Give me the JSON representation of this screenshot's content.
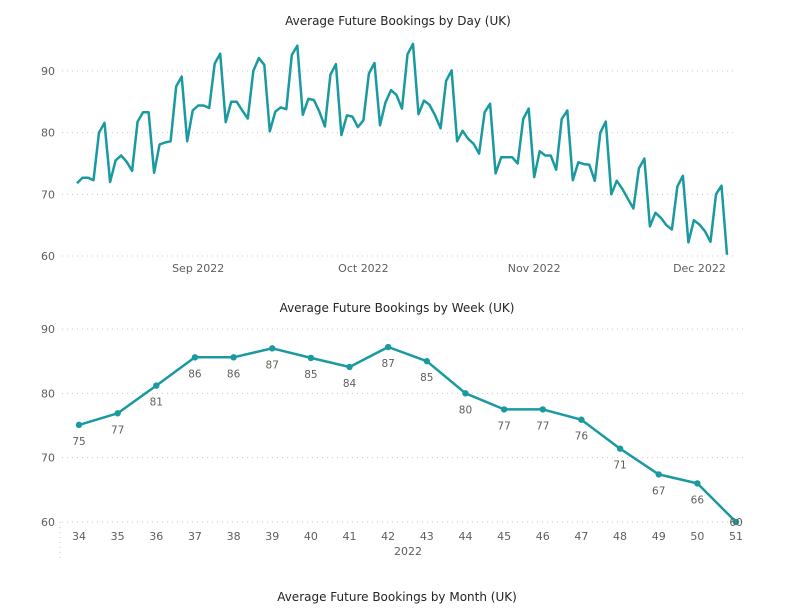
{
  "accent_color": "#1a9aa0",
  "chart_data": [
    {
      "type": "line",
      "title": "Average Future Bookings by Day (UK)",
      "xlabel": "",
      "ylabel": "",
      "ylim": [
        60,
        95
      ],
      "yticks": [
        60,
        70,
        80,
        90
      ],
      "xticks": [
        {
          "day": 22,
          "label": "Sep 2022"
        },
        {
          "day": 52,
          "label": "Oct 2022"
        },
        {
          "day": 83,
          "label": "Nov 2022"
        },
        {
          "day": 113,
          "label": "Dec 2022"
        }
      ],
      "x_start": "2022-08-10",
      "values": [
        71.8,
        72.7,
        72.7,
        72.3,
        80.0,
        81.6,
        72.0,
        75.5,
        76.3,
        75.3,
        73.8,
        81.8,
        83.3,
        83.3,
        73.5,
        78.1,
        78.4,
        78.6,
        87.5,
        89.1,
        78.6,
        83.6,
        84.4,
        84.4,
        84.0,
        91.2,
        92.8,
        81.7,
        85.0,
        85.0,
        83.6,
        82.3,
        90.0,
        92.1,
        91.0,
        80.2,
        83.4,
        84.1,
        83.8,
        92.6,
        94.1,
        82.9,
        85.5,
        85.3,
        83.4,
        81.0,
        89.4,
        91.1,
        79.6,
        82.8,
        82.6,
        80.9,
        82.0,
        89.6,
        91.3,
        81.2,
        84.9,
        86.9,
        86.1,
        83.9,
        92.7,
        94.4,
        83.0,
        85.2,
        84.5,
        82.8,
        80.7,
        88.4,
        90.1,
        78.6,
        80.3,
        79.0,
        78.2,
        76.6,
        83.3,
        84.7,
        73.4,
        76.0,
        76.0,
        76.0,
        75.0,
        82.2,
        83.9,
        72.8,
        77.0,
        76.3,
        76.3,
        74.0,
        82.2,
        83.6,
        72.3,
        75.2,
        74.9,
        74.8,
        72.2,
        80.0,
        81.8,
        70.0,
        72.2,
        70.9,
        69.3,
        67.7,
        74.2,
        75.8,
        64.8,
        67.0,
        66.2,
        65.0,
        64.3,
        71.3,
        73.0,
        62.2,
        65.8,
        65.1,
        64.0,
        62.3,
        70.0,
        71.4,
        60.2
      ]
    },
    {
      "type": "line",
      "title": "Average Future Bookings by Week (UK)",
      "xlabel": "2022",
      "ylabel": "",
      "ylim": [
        60,
        90
      ],
      "yticks": [
        60,
        70,
        80,
        90
      ],
      "categories": [
        "34",
        "35",
        "36",
        "37",
        "38",
        "39",
        "40",
        "41",
        "42",
        "43",
        "44",
        "45",
        "46",
        "47",
        "48",
        "49",
        "50",
        "51"
      ],
      "values": [
        75.1,
        76.9,
        81.2,
        85.6,
        85.6,
        87.0,
        85.5,
        84.1,
        87.2,
        85.0,
        80.0,
        77.5,
        77.5,
        75.9,
        71.4,
        67.4,
        66.0,
        60.0
      ],
      "data_labels": [
        "75",
        "77",
        "81",
        "86",
        "86",
        "87",
        "85",
        "84",
        "87",
        "85",
        "80",
        "77",
        "77",
        "76",
        "71",
        "67",
        "66",
        "60"
      ]
    },
    {
      "type": "bar",
      "title": "Average Future Bookings by Month (UK)"
    }
  ]
}
